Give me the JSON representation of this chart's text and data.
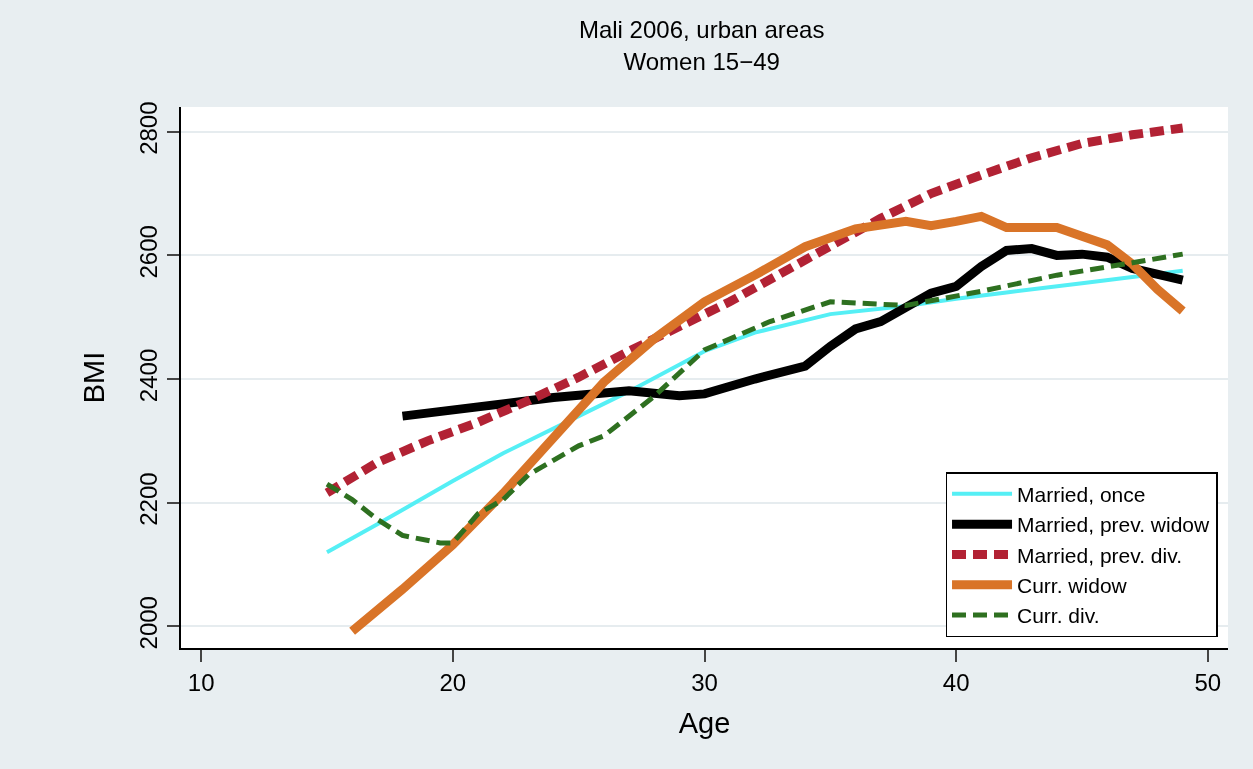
{
  "chart_data": {
    "type": "line",
    "title": "Mali 2006, urban areas",
    "subtitle": "Women 15−49",
    "xlabel": "Age",
    "ylabel": "BMI",
    "xlim": [
      9.2,
      50.8
    ],
    "xticks": [
      10,
      20,
      30,
      40,
      50
    ],
    "ylim": [
      1965,
      2840
    ],
    "yticks": [
      2000,
      2200,
      2400,
      2600,
      2800
    ],
    "grid": "y",
    "legend": "bottom right",
    "marker": "none",
    "series": [
      {
        "name": "Married, once",
        "color": "#55eff5",
        "line_style": "solid",
        "x": [
          15,
          17,
          20,
          22,
          25,
          27,
          30,
          32,
          35,
          38,
          40,
          42,
          45,
          47,
          49
        ],
        "values": [
          2120,
          2165,
          2235,
          2280,
          2340,
          2380,
          2445,
          2475,
          2505,
          2518,
          2530,
          2540,
          2555,
          2565,
          2575
        ]
      },
      {
        "name": "Married, prev. widow",
        "color": "#000000",
        "line_style": "solid",
        "x": [
          18,
          21,
          24,
          27,
          29,
          30,
          32,
          34,
          35,
          36,
          37,
          38,
          39,
          40,
          41,
          42,
          43,
          44,
          45,
          46,
          47,
          49
        ],
        "values": [
          2340,
          2355,
          2370,
          2381,
          2373,
          2376,
          2400,
          2421,
          2453,
          2481,
          2493,
          2516,
          2539,
          2550,
          2582,
          2608,
          2611,
          2600,
          2602,
          2597,
          2579,
          2560
        ]
      },
      {
        "name": "Married, prev. div.",
        "color": "#b22234",
        "line_style": "dashed",
        "x": [
          15,
          17,
          19,
          21,
          23,
          25,
          27,
          29,
          31,
          33,
          35,
          37,
          39,
          41,
          43,
          45,
          47,
          49
        ],
        "values": [
          2216,
          2265,
          2300,
          2330,
          2365,
          2403,
          2445,
          2485,
          2525,
          2570,
          2615,
          2660,
          2700,
          2730,
          2758,
          2781,
          2795,
          2806
        ]
      },
      {
        "name": "Curr. widow",
        "color": "#d97428",
        "line_style": "solid",
        "x": [
          16,
          18,
          20,
          22,
          24,
          26,
          28,
          30,
          32,
          34,
          36,
          38,
          39,
          40,
          41,
          42,
          44,
          45,
          46,
          47,
          48,
          49
        ],
        "values": [
          1992,
          2060,
          2132,
          2215,
          2305,
          2395,
          2465,
          2525,
          2568,
          2614,
          2643,
          2655,
          2648,
          2655,
          2663,
          2645,
          2645,
          2631,
          2617,
          2586,
          2545,
          2510
        ]
      },
      {
        "name": "Curr. div.",
        "color": "#2e7020",
        "line_style": "dashed",
        "x": [
          15,
          16,
          17,
          18,
          19.5,
          20,
          21,
          22,
          23,
          25,
          26,
          28,
          30,
          32.6,
          35,
          38,
          41,
          44,
          47,
          49
        ],
        "values": [
          2230,
          2205,
          2173,
          2147,
          2135,
          2135,
          2182,
          2205,
          2245,
          2292,
          2308,
          2372,
          2447,
          2493,
          2525,
          2519,
          2542,
          2568,
          2588,
          2602
        ]
      }
    ]
  }
}
